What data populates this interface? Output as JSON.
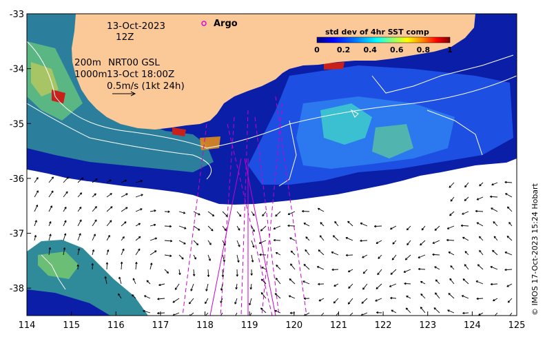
{
  "map": {
    "date": "13-Oct-2023",
    "hour": "12Z",
    "argo_label": "Argo",
    "depth_shallow": "200m",
    "depth_deep": "1000m",
    "product": "NRT00 GSL",
    "product_time": "13-Oct 18:00Z",
    "scale_vector": "0.5m/s (1kt 24h)",
    "credit": "© IMOS 17-Oct-2023 15:24 Hobart",
    "land_color": "#fbc998",
    "argo_color": "#e000e0",
    "track_color": "#cc00cc"
  },
  "colorbar": {
    "title": "std dev of 4hr SST comp",
    "ticks": [
      "0",
      "0.2",
      "0.4",
      "0.6",
      "0.8",
      "1"
    ],
    "colors": [
      "#00007f",
      "#0000ff",
      "#007fff",
      "#00ffff",
      "#7fff7f",
      "#ffff00",
      "#ff7f00",
      "#ff0000",
      "#7f0000"
    ]
  },
  "axes": {
    "lon_ticks": [
      "114",
      "115",
      "116",
      "117",
      "118",
      "119",
      "120",
      "121",
      "122",
      "123",
      "124",
      "125"
    ],
    "lat_ticks": [
      "-33",
      "-34",
      "-35",
      "-36",
      "-37",
      "-38"
    ],
    "lon_range": [
      114,
      125
    ],
    "lat_range": [
      -38.5,
      -33
    ]
  }
}
